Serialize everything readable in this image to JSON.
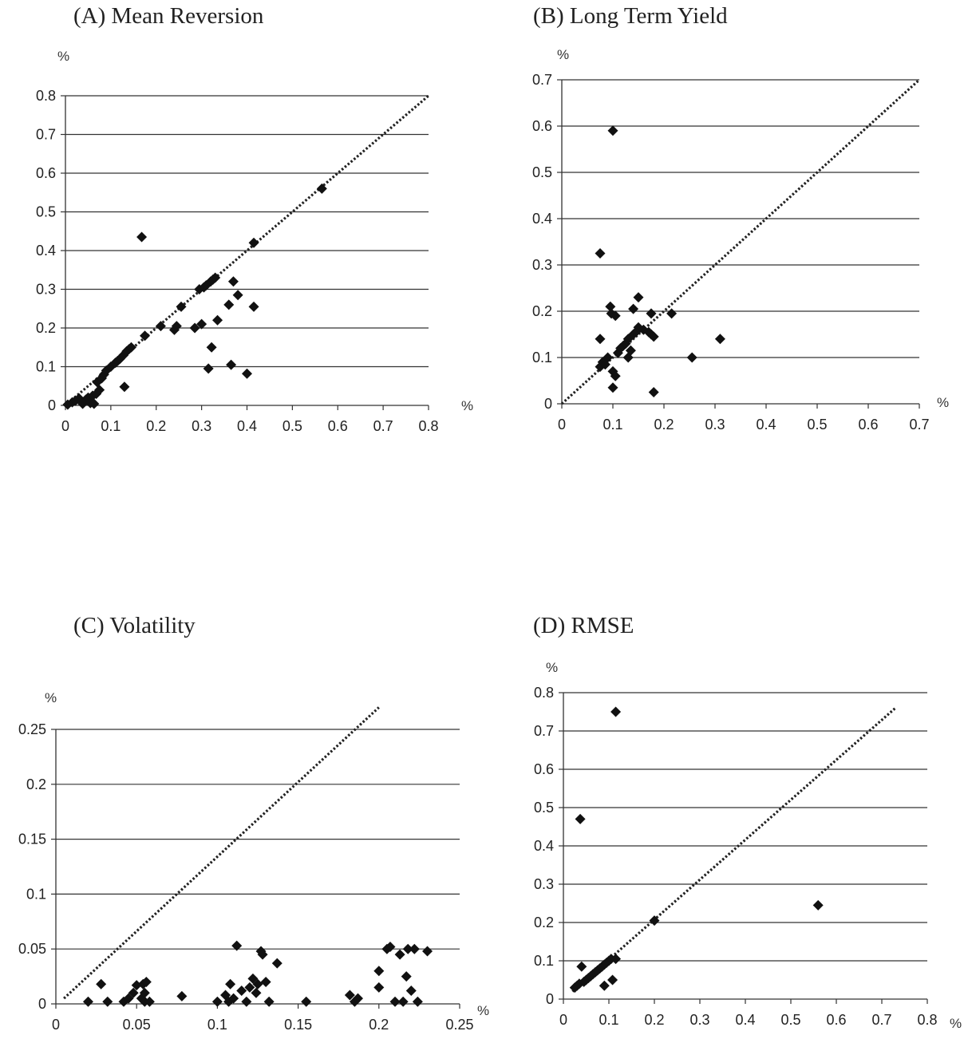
{
  "chart_data": [
    {
      "type": "scatter",
      "title": "(A) Mean Reversion",
      "x_unit": "%",
      "y_unit": "%",
      "xlim": [
        0,
        0.8
      ],
      "ylim": [
        0,
        0.8
      ],
      "x_ticks": [
        "0",
        "0.1",
        "0.2",
        "0.3",
        "0.4",
        "0.5",
        "0.6",
        "0.7",
        "0.8"
      ],
      "y_ticks": [
        "0",
        "0.1",
        "0.2",
        "0.3",
        "0.4",
        "0.5",
        "0.6",
        "0.7",
        "0.8"
      ],
      "grid": "horizontal",
      "diagonal": [
        [
          0,
          0
        ],
        [
          0.8,
          0.8
        ]
      ],
      "points": [
        [
          0.005,
          0.002
        ],
        [
          0.015,
          0.008
        ],
        [
          0.022,
          0.012
        ],
        [
          0.03,
          0.018
        ],
        [
          0.038,
          0.004
        ],
        [
          0.045,
          0.015
        ],
        [
          0.05,
          0.02
        ],
        [
          0.055,
          0.006
        ],
        [
          0.06,
          0.025
        ],
        [
          0.063,
          0.004
        ],
        [
          0.068,
          0.03
        ],
        [
          0.07,
          0.06
        ],
        [
          0.075,
          0.04
        ],
        [
          0.08,
          0.07
        ],
        [
          0.085,
          0.08
        ],
        [
          0.09,
          0.09
        ],
        [
          0.1,
          0.1
        ],
        [
          0.11,
          0.11
        ],
        [
          0.115,
          0.115
        ],
        [
          0.12,
          0.12
        ],
        [
          0.128,
          0.13
        ],
        [
          0.135,
          0.14
        ],
        [
          0.14,
          0.145
        ],
        [
          0.145,
          0.15
        ],
        [
          0.13,
          0.048
        ],
        [
          0.168,
          0.435
        ],
        [
          0.175,
          0.18
        ],
        [
          0.21,
          0.205
        ],
        [
          0.24,
          0.195
        ],
        [
          0.245,
          0.205
        ],
        [
          0.255,
          0.255
        ],
        [
          0.285,
          0.2
        ],
        [
          0.295,
          0.3
        ],
        [
          0.3,
          0.21
        ],
        [
          0.305,
          0.305
        ],
        [
          0.31,
          0.31
        ],
        [
          0.315,
          0.095
        ],
        [
          0.32,
          0.32
        ],
        [
          0.322,
          0.15
        ],
        [
          0.325,
          0.325
        ],
        [
          0.33,
          0.33
        ],
        [
          0.335,
          0.22
        ],
        [
          0.36,
          0.26
        ],
        [
          0.365,
          0.105
        ],
        [
          0.37,
          0.32
        ],
        [
          0.38,
          0.285
        ],
        [
          0.4,
          0.082
        ],
        [
          0.415,
          0.255
        ],
        [
          0.415,
          0.42
        ],
        [
          0.565,
          0.56
        ]
      ]
    },
    {
      "type": "scatter",
      "title": "(B) Long Term Yield",
      "x_unit": "%",
      "y_unit": "%",
      "xlim": [
        0,
        0.7
      ],
      "ylim": [
        0,
        0.7
      ],
      "x_ticks": [
        "0",
        "0.1",
        "0.2",
        "0.3",
        "0.4",
        "0.5",
        "0.6",
        "0.7"
      ],
      "y_ticks": [
        "0",
        "0.1",
        "0.2",
        "0.3",
        "0.4",
        "0.5",
        "0.6",
        "0.7"
      ],
      "grid": "horizontal",
      "diagonal": [
        [
          0,
          0
        ],
        [
          0.7,
          0.7
        ]
      ],
      "points": [
        [
          0.075,
          0.325
        ],
        [
          0.075,
          0.14
        ],
        [
          0.075,
          0.08
        ],
        [
          0.08,
          0.09
        ],
        [
          0.085,
          0.085
        ],
        [
          0.09,
          0.1
        ],
        [
          0.095,
          0.21
        ],
        [
          0.097,
          0.195
        ],
        [
          0.1,
          0.59
        ],
        [
          0.1,
          0.035
        ],
        [
          0.1,
          0.07
        ],
        [
          0.105,
          0.19
        ],
        [
          0.105,
          0.06
        ],
        [
          0.11,
          0.11
        ],
        [
          0.115,
          0.12
        ],
        [
          0.12,
          0.125
        ],
        [
          0.125,
          0.13
        ],
        [
          0.13,
          0.1
        ],
        [
          0.13,
          0.14
        ],
        [
          0.135,
          0.115
        ],
        [
          0.14,
          0.205
        ],
        [
          0.14,
          0.15
        ],
        [
          0.145,
          0.155
        ],
        [
          0.15,
          0.165
        ],
        [
          0.15,
          0.23
        ],
        [
          0.16,
          0.16
        ],
        [
          0.17,
          0.155
        ],
        [
          0.175,
          0.15
        ],
        [
          0.175,
          0.195
        ],
        [
          0.18,
          0.145
        ],
        [
          0.18,
          0.025
        ],
        [
          0.215,
          0.195
        ],
        [
          0.255,
          0.1
        ],
        [
          0.31,
          0.14
        ]
      ]
    },
    {
      "type": "scatter",
      "title": "(C) Volatility",
      "x_unit": "%",
      "y_unit": "%",
      "xlim": [
        0,
        0.25
      ],
      "ylim": [
        0,
        0.25
      ],
      "x_ticks": [
        "0",
        "0.05",
        "0.1",
        "0.15",
        "0.2",
        "0.25"
      ],
      "y_ticks": [
        "0",
        "0.05",
        "0.1",
        "0.15",
        "0.2",
        "0.25"
      ],
      "grid": "horizontal",
      "diagonal": [
        [
          0.005,
          0.005
        ],
        [
          0.2,
          0.27
        ]
      ],
      "points": [
        [
          0.02,
          0.002
        ],
        [
          0.028,
          0.018
        ],
        [
          0.032,
          0.002
        ],
        [
          0.042,
          0.002
        ],
        [
          0.045,
          0.005
        ],
        [
          0.048,
          0.01
        ],
        [
          0.05,
          0.017
        ],
        [
          0.053,
          0.005
        ],
        [
          0.054,
          0.018
        ],
        [
          0.055,
          0.002
        ],
        [
          0.055,
          0.01
        ],
        [
          0.056,
          0.02
        ],
        [
          0.058,
          0.002
        ],
        [
          0.078,
          0.007
        ],
        [
          0.1,
          0.002
        ],
        [
          0.105,
          0.008
        ],
        [
          0.107,
          0.002
        ],
        [
          0.108,
          0.018
        ],
        [
          0.11,
          0.005
        ],
        [
          0.112,
          0.053
        ],
        [
          0.115,
          0.012
        ],
        [
          0.118,
          0.002
        ],
        [
          0.12,
          0.015
        ],
        [
          0.122,
          0.023
        ],
        [
          0.124,
          0.01
        ],
        [
          0.125,
          0.018
        ],
        [
          0.127,
          0.048
        ],
        [
          0.128,
          0.045
        ],
        [
          0.13,
          0.02
        ],
        [
          0.132,
          0.002
        ],
        [
          0.137,
          0.037
        ],
        [
          0.155,
          0.002
        ],
        [
          0.182,
          0.008
        ],
        [
          0.185,
          0.002
        ],
        [
          0.187,
          0.005
        ],
        [
          0.2,
          0.015
        ],
        [
          0.2,
          0.03
        ],
        [
          0.205,
          0.05
        ],
        [
          0.207,
          0.052
        ],
        [
          0.21,
          0.002
        ],
        [
          0.213,
          0.045
        ],
        [
          0.215,
          0.002
        ],
        [
          0.217,
          0.025
        ],
        [
          0.218,
          0.05
        ],
        [
          0.22,
          0.012
        ],
        [
          0.222,
          0.05
        ],
        [
          0.224,
          0.002
        ],
        [
          0.23,
          0.048
        ]
      ]
    },
    {
      "type": "scatter",
      "title": "(D) RMSE",
      "x_unit": "%",
      "y_unit": "%",
      "xlim": [
        0,
        0.8
      ],
      "ylim": [
        0,
        0.8
      ],
      "x_ticks": [
        "0",
        "0.1",
        "0.2",
        "0.3",
        "0.4",
        "0.5",
        "0.6",
        "0.7",
        "0.8"
      ],
      "y_ticks": [
        "0",
        "0.1",
        "0.2",
        "0.3",
        "0.4",
        "0.5",
        "0.6",
        "0.7",
        "0.8"
      ],
      "grid": "horizontal",
      "diagonal": [
        [
          0.02,
          0.02
        ],
        [
          0.73,
          0.76
        ]
      ],
      "points": [
        [
          0.025,
          0.03
        ],
        [
          0.03,
          0.035
        ],
        [
          0.035,
          0.04
        ],
        [
          0.037,
          0.47
        ],
        [
          0.04,
          0.085
        ],
        [
          0.045,
          0.045
        ],
        [
          0.05,
          0.05
        ],
        [
          0.055,
          0.055
        ],
        [
          0.06,
          0.06
        ],
        [
          0.065,
          0.065
        ],
        [
          0.07,
          0.07
        ],
        [
          0.075,
          0.075
        ],
        [
          0.08,
          0.08
        ],
        [
          0.085,
          0.085
        ],
        [
          0.09,
          0.035
        ],
        [
          0.09,
          0.09
        ],
        [
          0.095,
          0.095
        ],
        [
          0.1,
          0.1
        ],
        [
          0.105,
          0.105
        ],
        [
          0.108,
          0.05
        ],
        [
          0.115,
          0.75
        ],
        [
          0.115,
          0.105
        ],
        [
          0.2,
          0.205
        ],
        [
          0.56,
          0.245
        ]
      ]
    }
  ]
}
